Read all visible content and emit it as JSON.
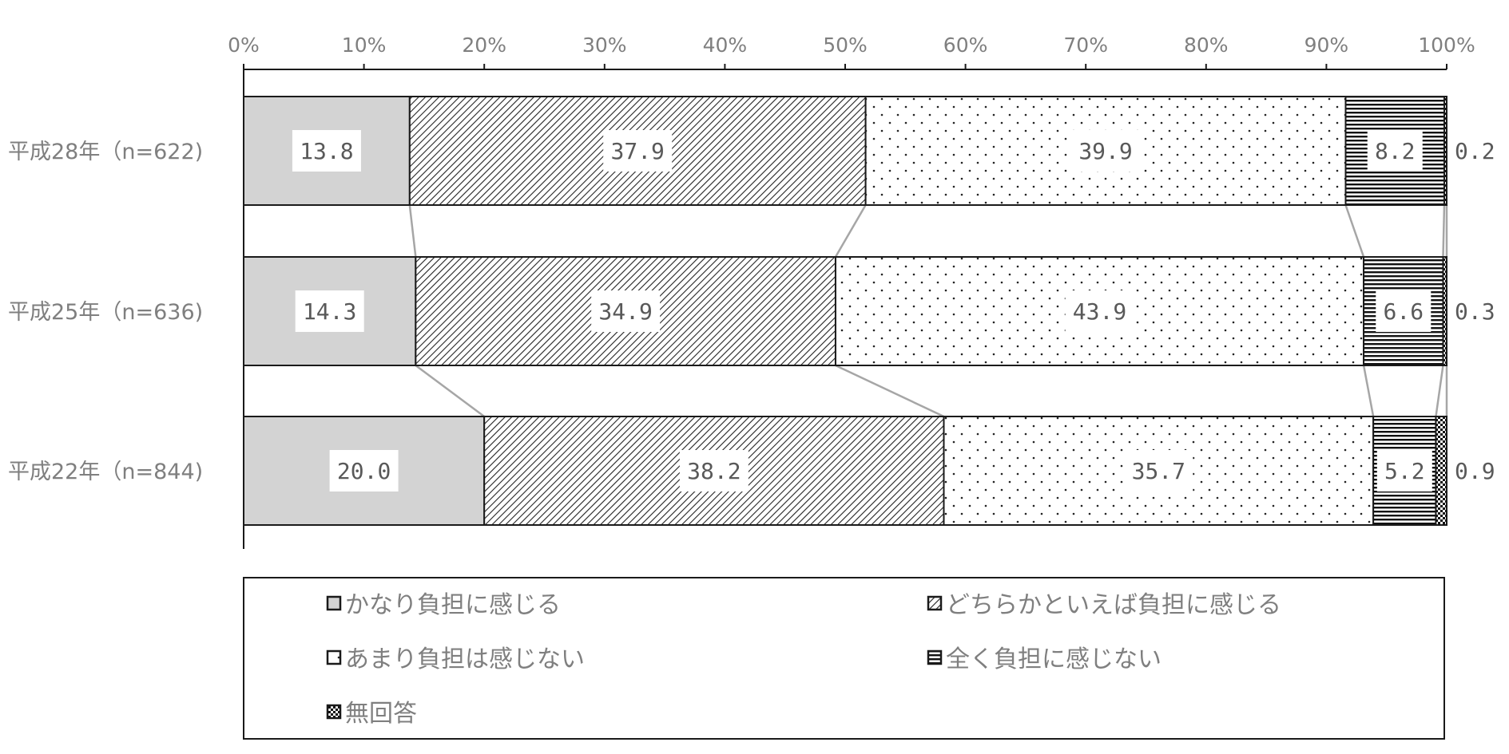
{
  "chart_data": {
    "type": "bar",
    "orientation": "horizontal",
    "stacked": "percent",
    "categories": [
      "平成28年（n=622)",
      "平成25年（n=636)",
      "平成22年（n=844)"
    ],
    "series": [
      {
        "name": "かなり負担に感じる",
        "values": [
          13.8,
          14.3,
          20.0
        ],
        "labels": [
          "13.8",
          "14.3",
          "20.0"
        ]
      },
      {
        "name": "どちらかといえば負担に感じる",
        "values": [
          37.9,
          34.9,
          38.2
        ],
        "labels": [
          "37.9",
          "34.9",
          "38.2"
        ]
      },
      {
        "name": "あまり負担は感じない",
        "values": [
          39.9,
          43.9,
          35.7
        ],
        "labels": [
          "39.9",
          "43.9",
          "35.7"
        ]
      },
      {
        "name": "全く負担に感じない",
        "values": [
          8.2,
          6.6,
          5.2
        ],
        "labels": [
          "8.2",
          "6.6",
          "5.2"
        ]
      },
      {
        "name": "無回答",
        "values": [
          0.2,
          0.3,
          0.9
        ],
        "labels": [
          "0.2",
          "0.3",
          "0.9"
        ]
      }
    ],
    "xlim": [
      0,
      100
    ],
    "xticks": [
      "0%",
      "10%",
      "20%",
      "30%",
      "40%",
      "50%",
      "60%",
      "70%",
      "80%",
      "90%",
      "100%"
    ],
    "axis_position": "top",
    "legend_position": "bottom",
    "series_lines": true,
    "grid": false,
    "colors": {
      "solid_gray": "#d3d3d3",
      "outline": "#1a1a1a",
      "connector": "#a6a6a6",
      "text": "#7f7f7f"
    }
  }
}
